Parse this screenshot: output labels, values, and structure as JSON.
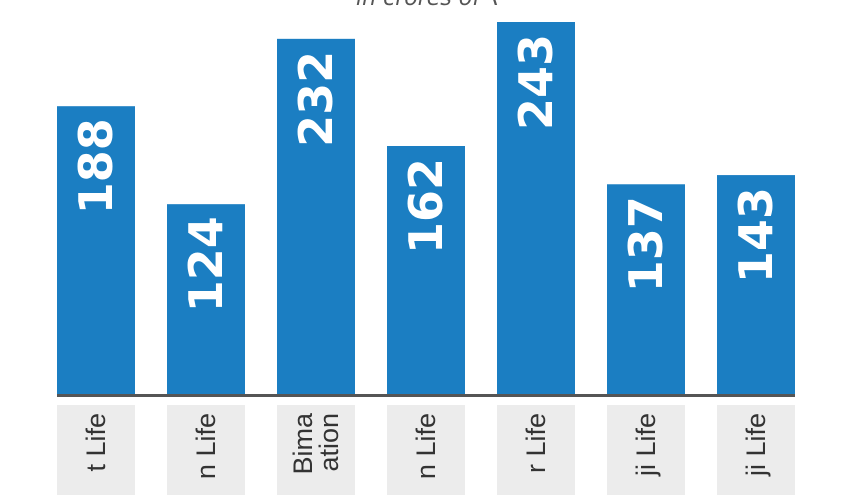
{
  "chart_data": {
    "type": "bar",
    "title": "in crores of ₹",
    "categories": [
      "t Life",
      "n Life",
      "Bima\nation",
      "n Life",
      "r Life",
      "ji Life",
      "ji Life"
    ],
    "values": [
      188,
      124,
      232,
      162,
      243,
      137,
      143
    ],
    "value_labels": [
      "188",
      "124",
      "232",
      "162",
      "243",
      "137",
      "143"
    ],
    "bar_color": "#1b7ec2",
    "label_color": "#ffffff",
    "axis_color": "#555555",
    "ylim": [
      0,
      243
    ],
    "grid": false
  }
}
